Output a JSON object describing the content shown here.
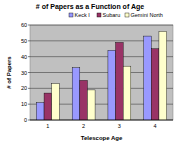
{
  "chart_data": {
    "type": "bar",
    "title": "# of Papers as a Function of Age",
    "x_label": "Telescope Age",
    "y_label": "# of Papers",
    "categories": [
      "1",
      "2",
      "3",
      "4"
    ],
    "series": [
      {
        "name": "Keck I",
        "color": "#9999ff",
        "values": [
          11,
          33,
          44,
          53
        ]
      },
      {
        "name": "Subaru",
        "color": "#993366",
        "values": [
          17,
          25,
          49,
          45
        ]
      },
      {
        "name": "Gemini North",
        "color": "#ffffcc",
        "values": [
          23,
          19,
          34,
          56
        ]
      }
    ],
    "ylim": [
      0,
      60
    ],
    "yticks": [
      0,
      10,
      20,
      30,
      40,
      50,
      60
    ],
    "grid": true,
    "legend": "top"
  }
}
